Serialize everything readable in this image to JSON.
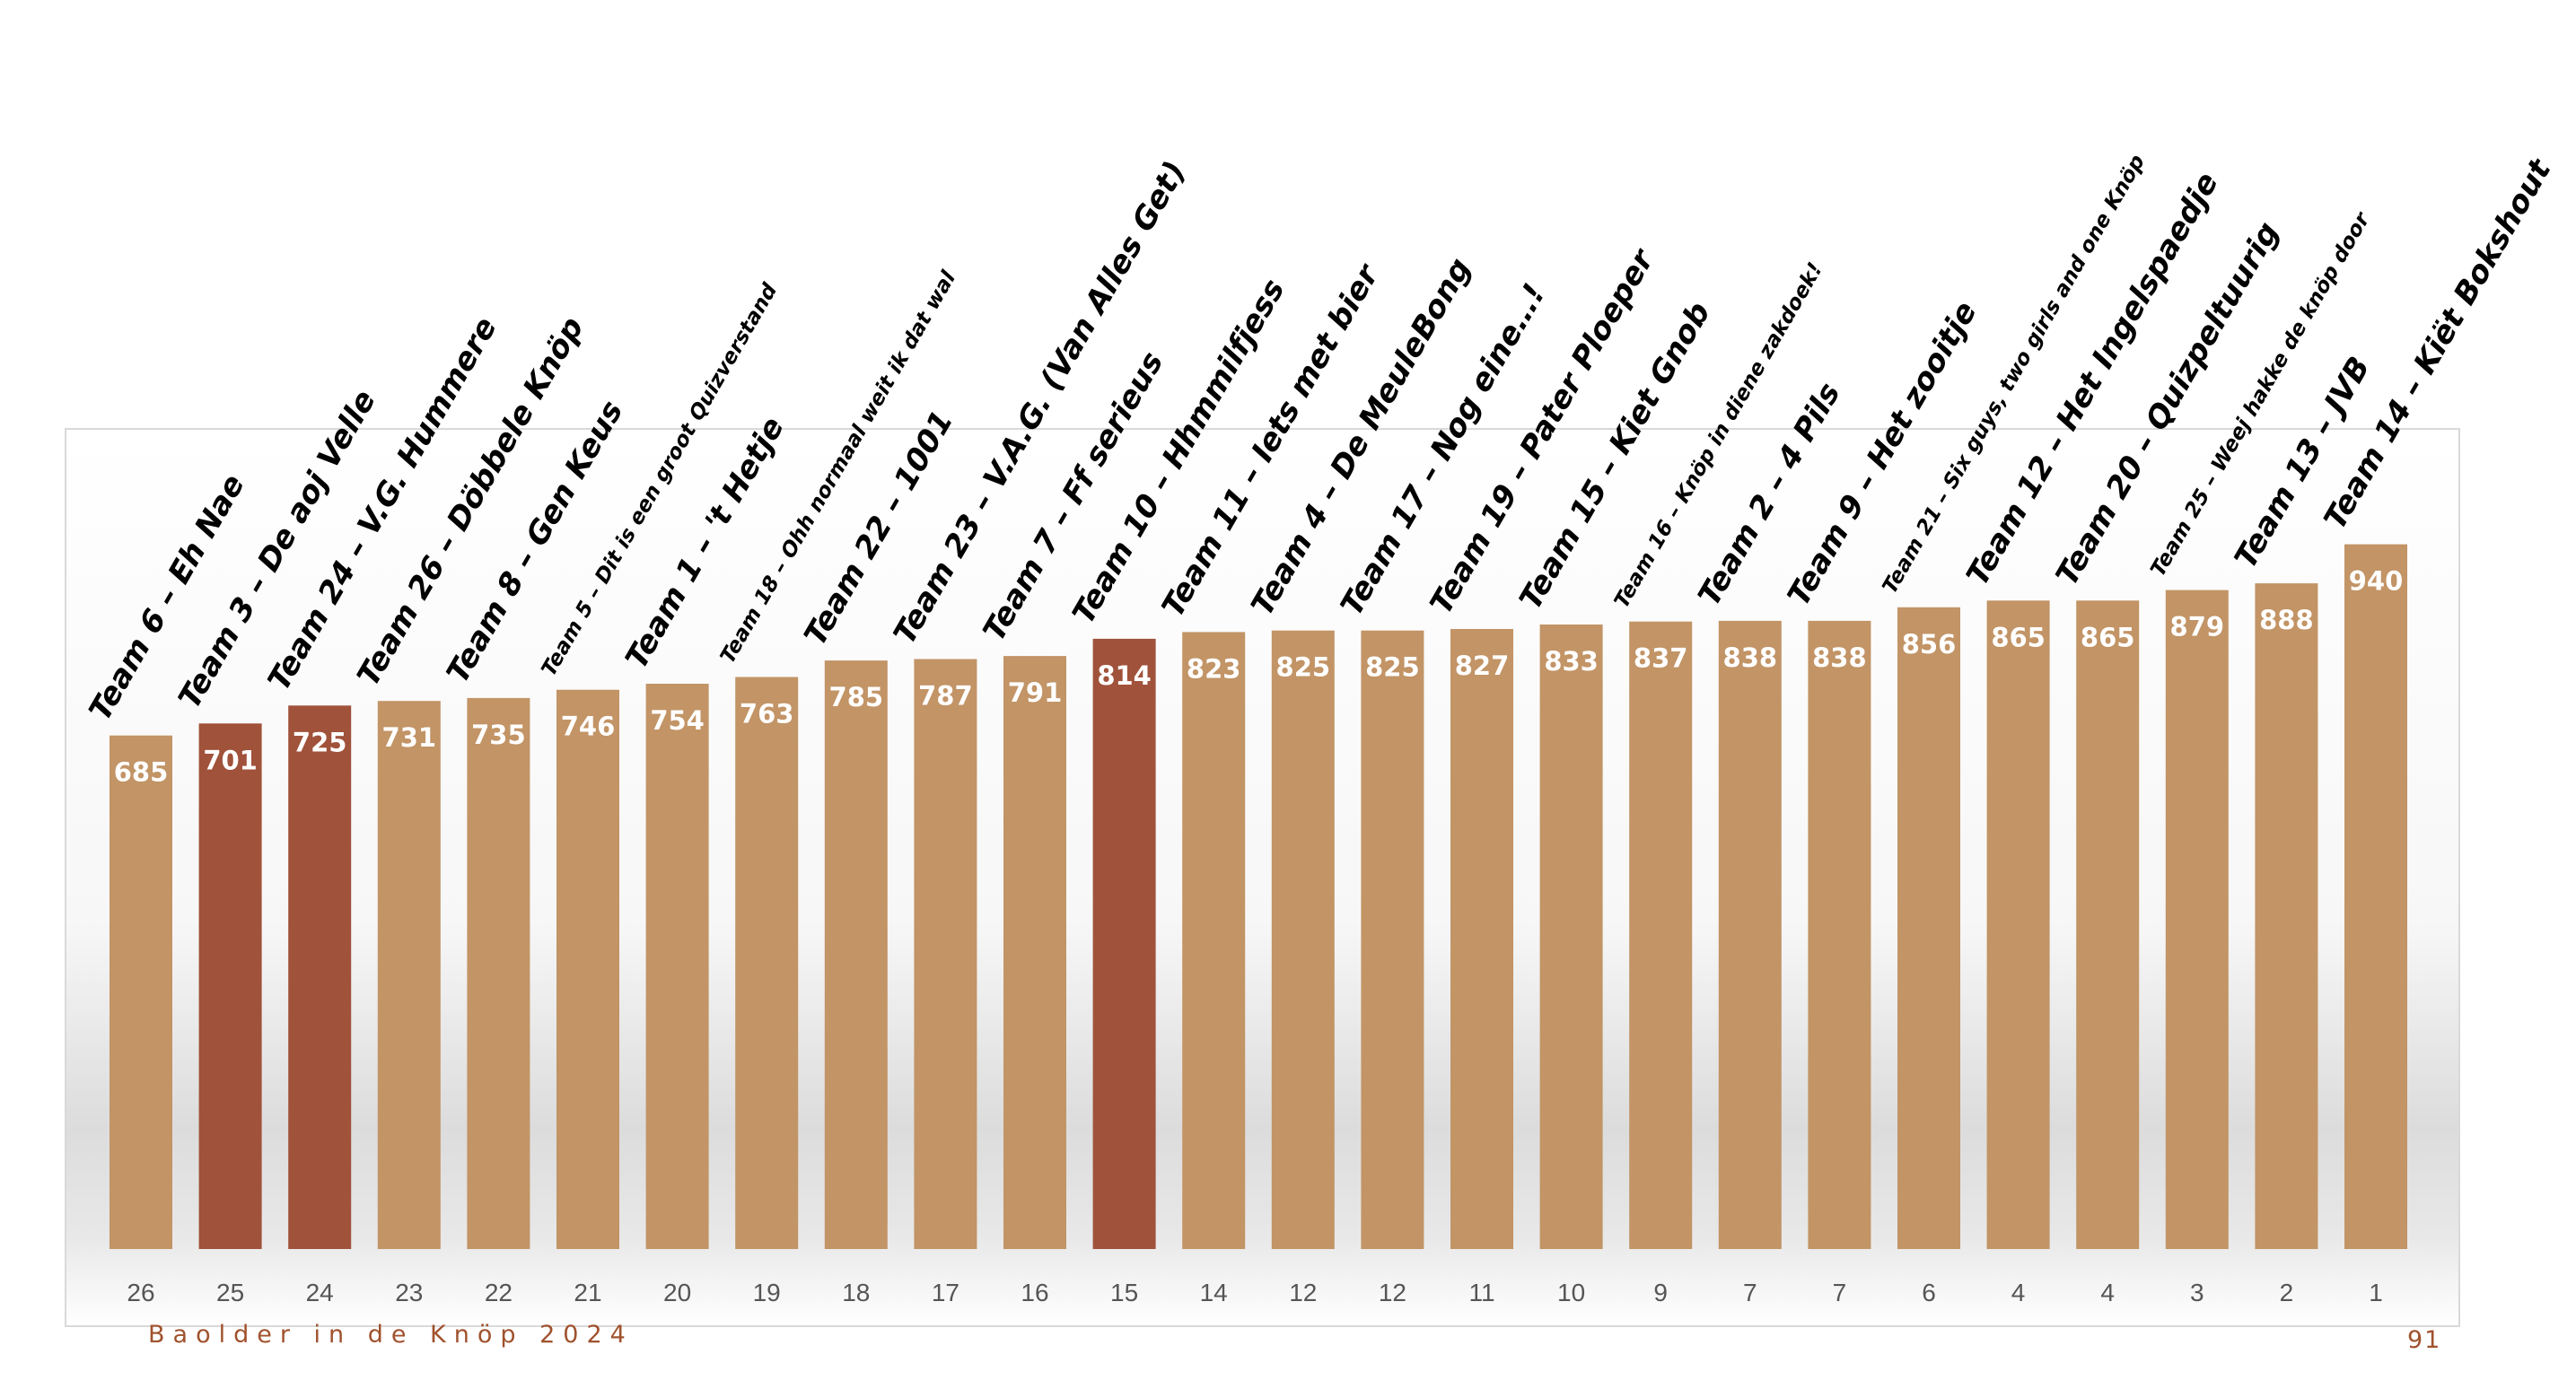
{
  "footer": {
    "event": "Baolder in de Knöp 2024",
    "page": "91"
  },
  "colors": {
    "bar": "#c29466",
    "highlight": "#a0523a",
    "label": "#ffffff",
    "rank": "#555555"
  },
  "chart_data": {
    "type": "bar",
    "title": "",
    "xlabel": "",
    "ylabel": "",
    "ylim": [
      0,
      1000
    ],
    "grid": false,
    "categories": [
      "Team 6 – Eh Nae",
      "Team 3 – De aoj Velle",
      "Team 24 – V.G. Hummere",
      "Team 26 – Döbbele Knöp",
      "Team 8 – Gen Keus",
      "Team 5 – Dit is een groot Quizverstand",
      "Team 1 – 't Hetje",
      "Team 18 – Ohh normaal weit ik dat wal",
      "Team 22 – 1001",
      "Team 23 – V.A.G. (Van Alles Get)",
      "Team 7 – Ff serieus",
      "Team 10 – Hhmmilfjess",
      "Team 11 – Iets met bier",
      "Team 4 – De MeuleBong",
      "Team 17 – Nog eine…!",
      "Team 19 – Pater Ploeper",
      "Team 15 – Kiet Gnob",
      "Team 16 – Knöp in diene zakdoek!",
      "Team 2 – 4 Pils",
      "Team 9 – Het zooitje",
      "Team 21 – Six guys, two girls and one Knöp",
      "Team 12 – Het Ingelspaedje",
      "Team 20 – Quizpeltuurig",
      "Team 25 – Weej hakke de knöp door",
      "Team 13 – JVB",
      "Team 14 – Kiët Bokshout"
    ],
    "values": [
      685,
      701,
      725,
      731,
      735,
      746,
      754,
      763,
      785,
      787,
      791,
      814,
      823,
      825,
      825,
      827,
      833,
      837,
      838,
      838,
      856,
      865,
      865,
      879,
      888,
      940
    ],
    "ranks": [
      "26",
      "25",
      "24",
      "23",
      "22",
      "21",
      "20",
      "19",
      "18",
      "17",
      "16",
      "15",
      "14",
      "12",
      "12",
      "11",
      "10",
      "9",
      "7",
      "7",
      "6",
      "4",
      "4",
      "3",
      "2",
      "1"
    ],
    "highlighted": [
      false,
      true,
      true,
      false,
      false,
      false,
      false,
      false,
      false,
      false,
      false,
      true,
      false,
      false,
      false,
      false,
      false,
      false,
      false,
      false,
      false,
      false,
      false,
      false,
      false,
      false
    ],
    "small_label": [
      false,
      false,
      false,
      false,
      false,
      true,
      false,
      true,
      false,
      false,
      false,
      false,
      false,
      false,
      false,
      false,
      false,
      true,
      false,
      false,
      true,
      false,
      false,
      true,
      false,
      false
    ]
  }
}
